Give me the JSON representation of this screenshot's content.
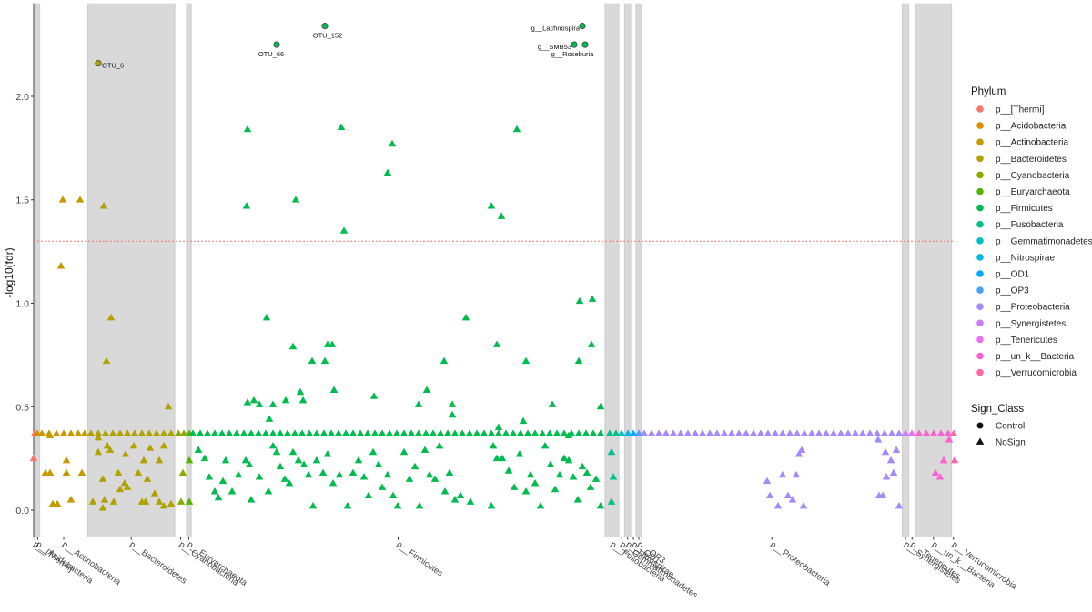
{
  "chart_data": {
    "type": "scatter",
    "y_label": "-log10(fdr)",
    "ylim": [
      -0.13,
      2.45
    ],
    "yticks": [
      {
        "value": 0,
        "label": "0.0"
      },
      {
        "value": 0.5,
        "label": "0.5"
      },
      {
        "value": 1,
        "label": "1.0"
      },
      {
        "value": 1.5,
        "label": "1.5"
      },
      {
        "value": 2,
        "label": "2.0"
      }
    ],
    "xlim": [
      0,
      1013
    ],
    "threshold": 1.3,
    "threshold_color": "#f8766d",
    "band_color": "#d9d9d9",
    "phylum_legend_title": "Phylum",
    "shape_legend_title": "Sign_Class",
    "shapes": [
      {
        "name": "Control",
        "shape": "circle"
      },
      {
        "name": "NoSign",
        "shape": "triangle"
      }
    ],
    "series": [
      {
        "name": "p__[Thermi]",
        "color": "#f8766d",
        "x": [
          0,
          1
        ],
        "values": [
          0.25,
          0.37
        ]
      },
      {
        "name": "p__Acidobacteria",
        "color": "#e08b00",
        "x": [
          4
        ],
        "values": [
          0.37
        ]
      },
      {
        "name": "p__Actinobacteria",
        "color": "#c49a00",
        "x": [
          32,
          51,
          30,
          13,
          18,
          36,
          53,
          36,
          41,
          21,
          26,
          18,
          9,
          17,
          25,
          33,
          41,
          49,
          56
        ],
        "values": [
          1.5,
          1.5,
          1.18,
          0.18,
          0.18,
          0.24,
          0.18,
          0.18,
          0.05,
          0.03,
          0.03,
          0.36,
          0.37,
          0.37,
          0.37,
          0.37,
          0.37,
          0.37,
          0.37
        ]
      },
      {
        "name": "p__Bacteroidetes",
        "color": "#b1a200",
        "x": [
          77,
          85,
          80,
          148,
          71,
          71,
          81,
          84,
          101,
          110,
          121,
          128,
          143,
          138,
          76,
          93,
          100,
          103,
          115,
          78,
          65,
          76,
          88,
          95,
          119,
          123,
          133,
          138,
          143,
          151,
          125,
          63,
          71,
          79,
          87,
          95,
          103,
          111,
          119,
          127,
          135,
          143,
          151
        ],
        "values": [
          1.47,
          0.93,
          0.72,
          0.5,
          0.35,
          0.28,
          0.31,
          0.29,
          0.27,
          0.31,
          0.24,
          0.3,
          0.31,
          0.24,
          0.15,
          0.18,
          0.13,
          0.11,
          0.18,
          0.05,
          0.04,
          0.01,
          0.04,
          0.1,
          0.04,
          0.04,
          0.08,
          0.04,
          0.02,
          0.03,
          0.15,
          0.37,
          0.37,
          0.37,
          0.37,
          0.37,
          0.37,
          0.37,
          0.37,
          0.37,
          0.37,
          0.37,
          0.37
        ],
        "control_x": [
          71
        ],
        "control_values": [
          2.16
        ],
        "control_labels": [
          "OTU_6"
        ]
      },
      {
        "name": "p__Cyanobacteria",
        "color": "#8aab00",
        "x": [
          164,
          162,
          159,
          165
        ],
        "values": [
          0.18,
          0.04,
          0.37,
          0.37
        ]
      },
      {
        "name": "p__Euryarchaeota",
        "color": "#53b400",
        "x": [
          171,
          171,
          171
        ],
        "values": [
          0.24,
          0.04,
          0.37
        ]
      },
      {
        "name": "p__Firmicutes",
        "color": "#00bb4e",
        "x": [
          235,
          338,
          531,
          394,
          389,
          234,
          288,
          341,
          503,
          514,
          600,
          614,
          256,
          475,
          285,
          509,
          323,
          328,
          613,
          306,
          320,
          451,
          541,
          599,
          330,
          432,
          374,
          293,
          296,
          277,
          235,
          242,
          248,
          263,
          423,
          460,
          570,
          623,
          259,
          460,
          538,
          511,
          181,
          188,
          193,
          199,
          203,
          208,
          211,
          218,
          225,
          233,
          237,
          239,
          248,
          258,
          263,
          267,
          271,
          276,
          281,
          285,
          291,
          297,
          302,
          307,
          311,
          318,
          323,
          329,
          336,
          345,
          351,
          357,
          363,
          368,
          373,
          379,
          383,
          389,
          395,
          400,
          407,
          413,
          419,
          424,
          430,
          435,
          441,
          446,
          452,
          457,
          463,
          469,
          480,
          505,
          509,
          515,
          522,
          528,
          534,
          541,
          546,
          551,
          557,
          562,
          568,
          573,
          578,
          583,
          588,
          593,
          598,
          603,
          608,
          612,
          618,
          623,
          588,
          503,
          175,
          183,
          191,
          199,
          207,
          215,
          223,
          231,
          239,
          247,
          255,
          263,
          271,
          279,
          287,
          295,
          303,
          311,
          319,
          327,
          335,
          343,
          351,
          359,
          367,
          375,
          383,
          391,
          399,
          407,
          415,
          423,
          431,
          439,
          447,
          455,
          463,
          471,
          479,
          487,
          495,
          503,
          511,
          519,
          527,
          535,
          543,
          551,
          559,
          567,
          575,
          583,
          591,
          599,
          607,
          615,
          623
        ],
        "values": [
          1.84,
          1.85,
          1.84,
          1.77,
          1.63,
          1.47,
          1.5,
          1.35,
          1.47,
          1.42,
          1.01,
          1.02,
          0.93,
          0.93,
          0.79,
          0.8,
          0.8,
          0.8,
          0.8,
          0.72,
          0.72,
          0.72,
          0.72,
          0.72,
          0.58,
          0.58,
          0.55,
          0.57,
          0.53,
          0.53,
          0.52,
          0.53,
          0.51,
          0.51,
          0.51,
          0.51,
          0.51,
          0.5,
          0.44,
          0.46,
          0.43,
          0.4,
          0.29,
          0.25,
          0.16,
          0.09,
          0.06,
          0.14,
          0.24,
          0.09,
          0.17,
          0.24,
          0.22,
          0.05,
          0.16,
          0.09,
          0.31,
          0.28,
          0.21,
          0.15,
          0.13,
          0.28,
          0.24,
          0.22,
          0.17,
          0.02,
          0.24,
          0.18,
          0.27,
          0.13,
          0.17,
          0.02,
          0.18,
          0.24,
          0.16,
          0.07,
          0.28,
          0.22,
          0.11,
          0.17,
          0.07,
          0.02,
          0.28,
          0.15,
          0.21,
          0.02,
          0.29,
          0.17,
          0.15,
          0.31,
          0.09,
          0.18,
          0.05,
          0.07,
          0.04,
          0.31,
          0.25,
          0.25,
          0.19,
          0.11,
          0.27,
          0.09,
          0.17,
          0.13,
          0.02,
          0.31,
          0.22,
          0.1,
          0.17,
          0.25,
          0.24,
          0.16,
          0.05,
          0.21,
          0.18,
          0.11,
          0.15,
          0.02,
          0.36,
          0.02,
          0.37,
          0.37,
          0.37,
          0.37,
          0.37,
          0.37,
          0.37,
          0.37,
          0.37,
          0.37,
          0.37,
          0.37,
          0.37,
          0.37,
          0.37,
          0.37,
          0.37,
          0.37,
          0.37,
          0.37,
          0.37,
          0.37,
          0.37,
          0.37,
          0.37,
          0.37,
          0.37,
          0.37,
          0.37,
          0.37,
          0.37,
          0.37,
          0.37,
          0.37,
          0.37,
          0.37,
          0.37,
          0.37,
          0.37,
          0.37,
          0.37,
          0.37,
          0.37,
          0.37,
          0.37,
          0.37,
          0.37,
          0.37,
          0.37,
          0.37,
          0.37,
          0.37,
          0.37,
          0.37,
          0.37,
          0.37,
          0.37
        ],
        "control_x": [
          267,
          320,
          603,
          594,
          606
        ],
        "control_values": [
          2.25,
          2.34,
          2.34,
          2.25,
          2.25
        ],
        "control_labels": [
          "OTU_66",
          "OTU_152",
          "g__Lachnospira",
          "g__SMB53",
          "g__Roseburia"
        ]
      },
      {
        "name": "p__Fusobacteria",
        "color": "#00c08f",
        "x": [
          635,
          637,
          635,
          633,
          640
        ],
        "values": [
          0.28,
          0.16,
          0.04,
          0.37,
          0.37
        ]
      },
      {
        "name": "p__Gemmatimonadetes",
        "color": "#00bfc0",
        "x": [
          646
        ],
        "values": [
          0.37
        ]
      },
      {
        "name": "p__Nitrospirae",
        "color": "#00b7e8",
        "x": [
          653
        ],
        "values": [
          0.37
        ]
      },
      {
        "name": "p__OD1",
        "color": "#00a9ff",
        "x": [
          659
        ],
        "values": [
          0.37
        ]
      },
      {
        "name": "p__OP3",
        "color": "#4d9dff",
        "x": [
          665
        ],
        "values": [
          0.37
        ]
      },
      {
        "name": "p__Proteobacteria",
        "color": "#a58aff",
        "x": [
          806,
          809,
          818,
          823,
          829,
          834,
          838,
          841,
          844,
          846,
          928,
          933,
          937,
          942,
          945,
          948,
          951,
          929,
          936,
          671,
          679,
          687,
          695,
          703,
          711,
          719,
          727,
          735,
          743,
          751,
          759,
          767,
          775,
          783,
          791,
          799,
          807,
          815,
          823,
          831,
          839,
          847,
          855,
          863,
          871,
          879,
          887,
          895,
          903,
          911,
          919,
          927,
          935,
          943,
          951
        ],
        "values": [
          0.14,
          0.07,
          0.02,
          0.17,
          0.07,
          0.05,
          0.17,
          0.27,
          0.29,
          0.02,
          0.34,
          0.07,
          0.16,
          0.24,
          0.18,
          0.29,
          0.02,
          0.07,
          0.28,
          0.37,
          0.37,
          0.37,
          0.37,
          0.37,
          0.37,
          0.37,
          0.37,
          0.37,
          0.37,
          0.37,
          0.37,
          0.37,
          0.37,
          0.37,
          0.37,
          0.37,
          0.37,
          0.37,
          0.37,
          0.37,
          0.37,
          0.37,
          0.37,
          0.37,
          0.37,
          0.37,
          0.37,
          0.37,
          0.37,
          0.37,
          0.37,
          0.37,
          0.37,
          0.37,
          0.37
        ]
      },
      {
        "name": "p__Synergistetes",
        "color": "#c77cff",
        "x": [
          958
        ],
        "values": [
          0.37
        ]
      },
      {
        "name": "p__Tenericutes",
        "color": "#e96ff0",
        "x": [
          965
        ],
        "values": [
          0.37
        ]
      },
      {
        "name": "p__un_k__Bacteria",
        "color": "#fd61d1",
        "x": [
          991,
          996,
          1000,
          1006,
          973,
          981,
          989,
          997,
          1005
        ],
        "values": [
          0.18,
          0.16,
          0.24,
          0.34,
          0.37,
          0.37,
          0.37,
          0.37,
          0.37
        ]
      },
      {
        "name": "p__Verrucomicrobia",
        "color": "#ff67a4",
        "x": [
          1012,
          1011
        ],
        "values": [
          0.24,
          0.37
        ]
      }
    ]
  }
}
